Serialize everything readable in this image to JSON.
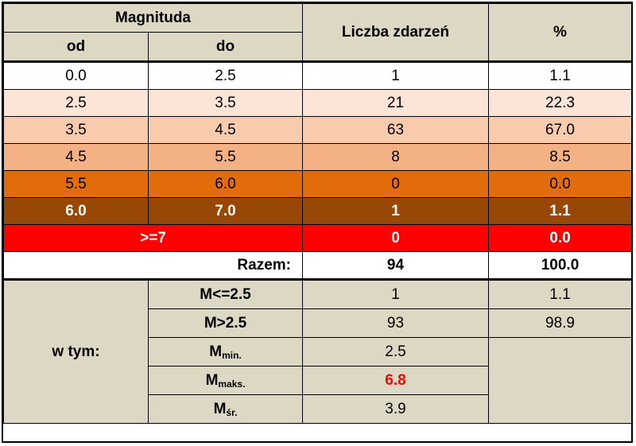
{
  "header": {
    "magnitude": "Magnituda",
    "from": "od",
    "to": "do",
    "count": "Liczba zdarzeń",
    "percent": "%"
  },
  "rows": [
    {
      "od": "0.0",
      "do": "2.5",
      "count": "1",
      "pct": "1.1",
      "color": "#ffffff"
    },
    {
      "od": "2.5",
      "do": "3.5",
      "count": "21",
      "pct": "22.3",
      "color": "#fce4d6"
    },
    {
      "od": "3.5",
      "do": "4.5",
      "count": "63",
      "pct": "67.0",
      "color": "#f8cbad"
    },
    {
      "od": "4.5",
      "do": "5.5",
      "count": "8",
      "pct": "8.5",
      "color": "#f4b183"
    },
    {
      "od": "5.5",
      "do": "6.0",
      "count": "0",
      "pct": "0.0",
      "color": "#e26b0a"
    },
    {
      "od": "6.0",
      "do": "7.0",
      "count": "1",
      "pct": "1.1",
      "color": "#974706"
    }
  ],
  "over7": {
    "label": ">=7",
    "count": "0",
    "pct": "0.0",
    "color": "#ff0000"
  },
  "total": {
    "label": "Razem:",
    "count": "94",
    "pct": "100.0"
  },
  "breakdown": {
    "label": "w tym:",
    "items": [
      {
        "label": "M<=2.5",
        "value": "1",
        "pct": "1.1"
      },
      {
        "label": "M>2.5",
        "value": "93",
        "pct": "98.9"
      },
      {
        "label": "M",
        "sub": "min.",
        "value": "2.5"
      },
      {
        "label": "M",
        "sub": "maks.",
        "value": "6.8",
        "highlight": "#ff0000"
      },
      {
        "label": "M",
        "sub": "śr.",
        "value": "3.9"
      }
    ]
  }
}
